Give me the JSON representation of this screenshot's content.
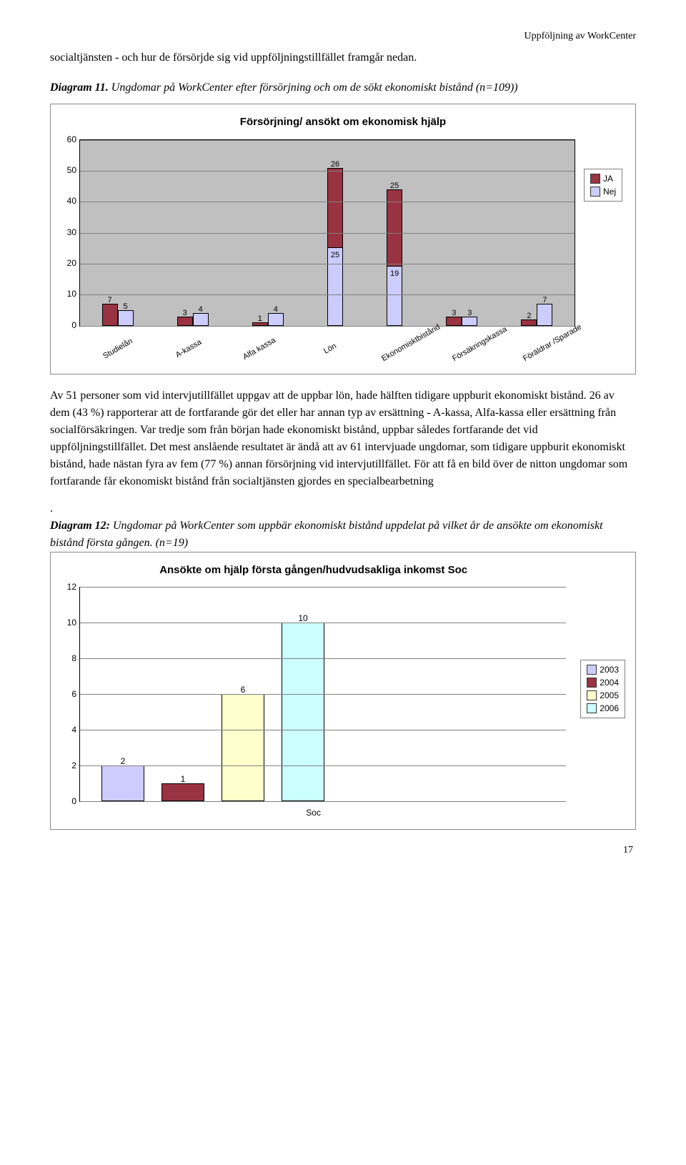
{
  "header_right": "Uppföljning av WorkCenter",
  "intro": "socialtjänsten - och hur de försörjde sig vid uppföljningstillfället framgår nedan.",
  "diagram11_label_prefix": "Diagram 11.",
  "diagram11_label": "Ungdomar på WorkCenter efter försörjning och om de sökt ekonomiskt bistånd (n=109))",
  "chart1": {
    "title": "Försörjning/ ansökt om ekonomisk hjälp",
    "y_ticks": [
      0,
      10,
      20,
      30,
      40,
      50,
      60
    ],
    "ymax": 60,
    "background_color": "#c0c0c0",
    "grid_color": "#808080",
    "series": [
      {
        "name": "JA",
        "color": "#9a3341"
      },
      {
        "name": "Nej",
        "color": "#ccccff"
      }
    ],
    "categories": [
      "Studielån",
      "A-kassa",
      "Alfa kassa",
      "Lön",
      "Ekonomisktbistånd",
      "Försäkringskassa",
      "Föräldrar /Sparade"
    ],
    "values_ja": [
      7,
      3,
      1,
      26,
      25,
      3,
      2
    ],
    "values_nej": [
      5,
      4,
      4,
      null,
      null,
      3,
      7
    ],
    "values_center": [
      null,
      null,
      null,
      null,
      19,
      null,
      null
    ],
    "legend_labels": [
      "JA",
      "Nej"
    ]
  },
  "body_paragraph": "Av 51 personer som vid intervjutillfället uppgav att de uppbar lön, hade hälften tidigare uppburit ekonomiskt bistånd. 26 av dem (43 %) rapporterar att de fortfarande gör det eller har annan typ av ersättning - A-kassa, Alfa-kassa eller ersättning från socialförsäkringen. Var tredje som från början hade ekonomiskt bistånd, uppbar således fortfarande det vid uppföljningstillfället. Det mest anslående resultatet är ändå att av 61 intervjuade ungdomar, som tidigare uppburit ekonomiskt bistånd, hade nästan fyra av fem (77 %) annan försörjning vid intervjutillfället. För att få en bild över de nitton ungdomar som fortfarande får ekonomiskt bistånd från socialtjänsten gjordes en specialbearbetning",
  "period": ".",
  "diagram12_label_bold": "Diagram 12:",
  "diagram12_label_rest": " Ungdomar på WorkCenter som uppbär ekonomiskt bistånd uppdelat på vilket år de ansökte om ekonomiskt bistånd första gången. (n=19)",
  "chart2": {
    "title": "Ansökte om hjälp första gången/hudvudsakliga inkomst Soc",
    "y_ticks": [
      0,
      2,
      4,
      6,
      8,
      10,
      12
    ],
    "ymax": 12,
    "years": [
      "2003",
      "2004",
      "2005",
      "2006"
    ],
    "colors": [
      "#ccccff",
      "#993341",
      "#ffffcc",
      "#ccffff"
    ],
    "values": [
      2,
      1,
      6,
      10
    ],
    "x_label": "Soc"
  },
  "page_number": "17"
}
